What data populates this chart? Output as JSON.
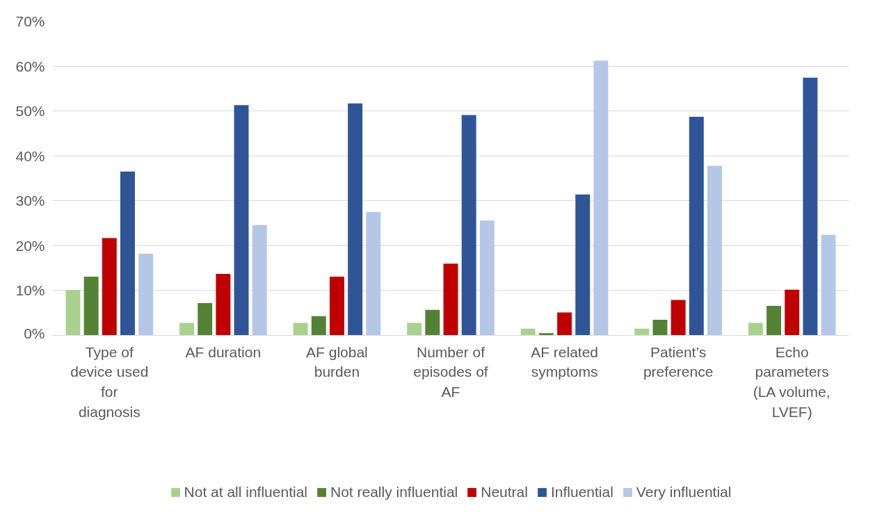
{
  "chart_data": {
    "type": "bar",
    "categories": [
      "Type of device used for diagnosis",
      "AF duration",
      "AF global burden",
      "Number of episodes of AF",
      "AF related symptoms",
      "Patient’s preference",
      "Echo parameters (LA volume, LVEF)"
    ],
    "series": [
      {
        "name": "Not at all influential",
        "color": "#a9d18e",
        "values": [
          10.1,
          2.8,
          2.8,
          2.8,
          1.5,
          1.5,
          2.8
        ]
      },
      {
        "name": "Not really influential",
        "color": "#548235",
        "values": [
          13.1,
          7.2,
          4.3,
          5.7,
          0.5,
          3.5,
          6.6
        ]
      },
      {
        "name": "Neutral",
        "color": "#c00000",
        "values": [
          21.7,
          13.7,
          13.1,
          16.0,
          5.1,
          7.9,
          10.2
        ]
      },
      {
        "name": "Influential",
        "color": "#2f5597",
        "values": [
          36.5,
          51.3,
          51.7,
          49.1,
          31.4,
          48.7,
          57.4
        ]
      },
      {
        "name": "Very influential",
        "color": "#b4c7e7",
        "values": [
          18.2,
          24.6,
          27.5,
          25.6,
          61.2,
          37.8,
          22.4
        ]
      }
    ],
    "ylim": [
      0,
      70
    ],
    "yticks": [
      {
        "value": 0,
        "label": "0%"
      },
      {
        "value": 10,
        "label": "10%"
      },
      {
        "value": 20,
        "label": "20%"
      },
      {
        "value": 30,
        "label": "30%"
      },
      {
        "value": 40,
        "label": "40%"
      },
      {
        "value": 50,
        "label": "50%"
      },
      {
        "value": 60,
        "label": "60%"
      },
      {
        "value": 70,
        "label": "70%"
      }
    ],
    "grid": "y",
    "legend": "bottom"
  }
}
